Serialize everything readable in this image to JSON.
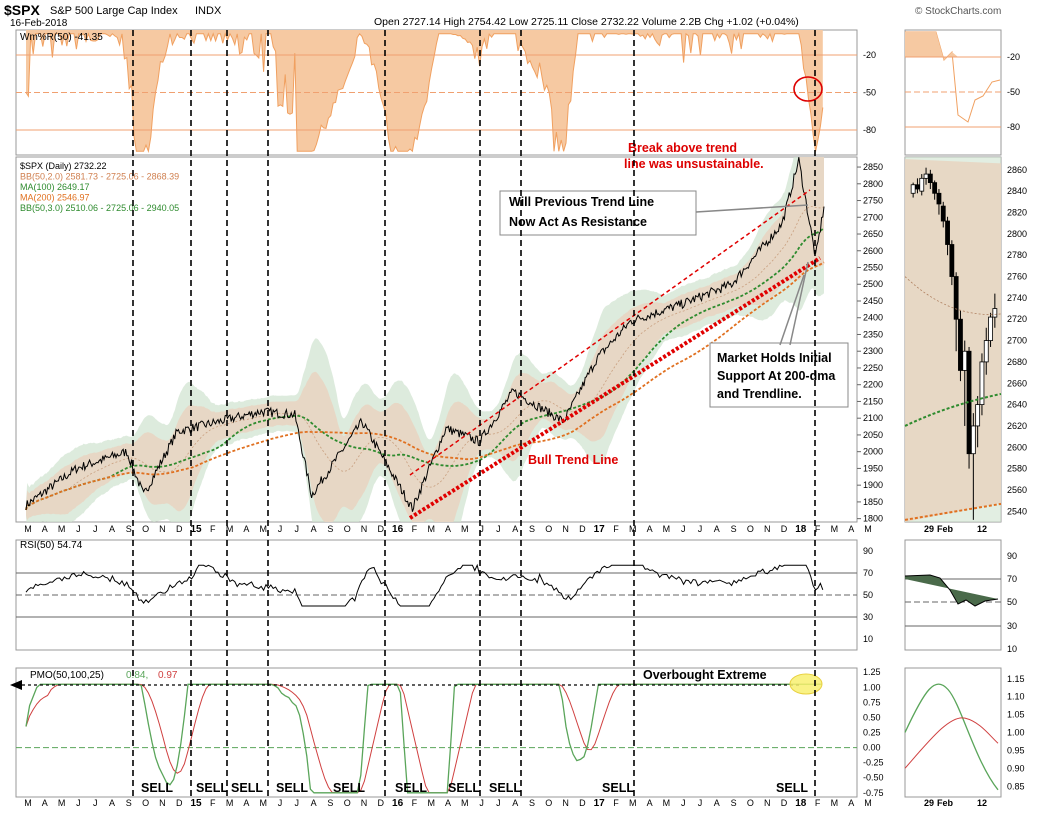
{
  "header": {
    "symbol": "$SPX",
    "name": "S&P 500 Large Cap Index",
    "exchange": "INDX",
    "date": "16-Feb-2018",
    "quote": "Open 2727.14  High 2754.42  Low 2725.11  Close 2732.22  Volume 2.2B  Chg +1.02 (+0.04%)",
    "watermark": "© StockCharts.com"
  },
  "colors": {
    "price": "#000000",
    "wmr": "#f0a060",
    "bb_fill": "#e8d5c2",
    "bb_outer": "#cfe3cf",
    "ma100": "#2e8b2e",
    "ma200": "#e07020",
    "annot_red": "#dd0000",
    "pmo_green": "#5aa55a",
    "pmo_red": "#d04040"
  },
  "wmr_panel": {
    "legend": "Wm%R(50) -41.35",
    "ticks": [
      "-20",
      "-50",
      "-80"
    ],
    "tick_values": [
      -20,
      -50,
      -80
    ],
    "ylim": [
      -100,
      0
    ]
  },
  "price_panel": {
    "legend": [
      {
        "text": "$SPX (Daily) 2732.22",
        "color": "#000000"
      },
      {
        "text": "BB(50,2.0) 2581.73 - 2725.06 - 2868.39",
        "color": "#d08050"
      },
      {
        "text": "MA(100) 2649.17",
        "color": "#2e8b2e"
      },
      {
        "text": "MA(200) 2546.97",
        "color": "#e07020"
      },
      {
        "text": "BB(50,3.0) 2510.06 - 2725.06 - 2940.05",
        "color": "#2e8b2e"
      }
    ],
    "ticks": [
      "2850",
      "2800",
      "2750",
      "2700",
      "2650",
      "2600",
      "2550",
      "2500",
      "2450",
      "2400",
      "2350",
      "2300",
      "2250",
      "2200",
      "2150",
      "2100",
      "2050",
      "2000",
      "1950",
      "1900",
      "1850",
      "1800"
    ],
    "tick_values": [
      2850,
      2800,
      2750,
      2700,
      2650,
      2600,
      2550,
      2500,
      2450,
      2400,
      2350,
      2300,
      2250,
      2200,
      2150,
      2100,
      2050,
      2000,
      1950,
      1900,
      1850,
      1800
    ],
    "ylim": [
      1790,
      2880
    ],
    "annotations": {
      "break_line1": "Break above trend",
      "break_line2": "line was unsustainable.",
      "resistance_line1": "Will Previous Trend Line",
      "resistance_line2": "Now Act As Resistance",
      "support_line1": "Market Holds Initial",
      "support_line2": "Support At 200-dma",
      "support_line3": "and Trendline.",
      "bull": "Bull Trend Line"
    }
  },
  "zoom_panel": {
    "ticks": [
      "2860",
      "2840",
      "2820",
      "2800",
      "2780",
      "2760",
      "2740",
      "2720",
      "2700",
      "2680",
      "2660",
      "2640",
      "2620",
      "2600",
      "2580",
      "2560",
      "2540"
    ],
    "tick_values": [
      2860,
      2840,
      2820,
      2800,
      2780,
      2760,
      2740,
      2720,
      2700,
      2680,
      2660,
      2640,
      2620,
      2600,
      2580,
      2560,
      2540
    ],
    "ylim": [
      2530,
      2872
    ],
    "x_labels": [
      "29",
      "Feb",
      "12"
    ],
    "wmr_ticks": [
      "-20",
      "-50",
      "-80"
    ],
    "rsi_ticks": [
      "90",
      "70",
      "50",
      "30",
      "10"
    ],
    "pmo_ticks": [
      "1.15",
      "1.10",
      "1.05",
      "1.00",
      "0.95",
      "0.90",
      "0.85"
    ],
    "pmo_tick_values": [
      1.15,
      1.1,
      1.05,
      1.0,
      0.95,
      0.9,
      0.85
    ],
    "pmo_ylim": [
      0.82,
      1.18
    ]
  },
  "rsi_panel": {
    "legend": "RSI(50) 54.74",
    "ticks": [
      "90",
      "70",
      "50",
      "30",
      "10"
    ],
    "tick_values": [
      90,
      70,
      50,
      30,
      10
    ],
    "ylim": [
      0,
      100
    ]
  },
  "pmo_panel": {
    "legend_name": "PMO(50,100,25)",
    "legend_v1": "0.84,",
    "legend_v2": "0.97",
    "ticks": [
      "1.25",
      "1.00",
      "0.75",
      "0.50",
      "0.25",
      "0.00",
      "-0.25",
      "-0.50",
      "-0.75"
    ],
    "tick_values": [
      1.25,
      1.0,
      0.75,
      0.5,
      0.25,
      0.0,
      -0.25,
      -0.5,
      -0.75
    ],
    "ylim": [
      -0.82,
      1.32
    ],
    "overbought": "Overbought Extreme"
  },
  "x_axis_labels": [
    "M",
    "A",
    "M",
    "J",
    "J",
    "A",
    "S",
    "O",
    "N",
    "D",
    "15",
    "F",
    "M",
    "A",
    "M",
    "J",
    "J",
    "A",
    "S",
    "O",
    "N",
    "D",
    "16",
    "F",
    "M",
    "A",
    "M",
    "J",
    "J",
    "A",
    "S",
    "O",
    "N",
    "D",
    "17",
    "F",
    "M",
    "A",
    "M",
    "J",
    "J",
    "A",
    "S",
    "O",
    "N",
    "D",
    "18",
    "F",
    "M",
    "A",
    "M"
  ],
  "sell_labels": [
    "SELL",
    "SELL",
    "SELL",
    "SELL",
    "SELL",
    "SELL",
    "SELL",
    "SELL",
    "SELL",
    "SELL",
    "SELL"
  ],
  "chart_data": {
    "type": "line",
    "title": "$SPX S&P 500 Large Cap Index",
    "x_range": [
      "2014-03",
      "2018-02-16"
    ],
    "anchors": [
      {
        "date": "2014-03",
        "spx": 1840
      },
      {
        "date": "2014-06",
        "spx": 1950
      },
      {
        "date": "2014-09",
        "spx": 2000
      },
      {
        "date": "2014-10",
        "spx": 1870
      },
      {
        "date": "2014-12",
        "spx": 2060
      },
      {
        "date": "2015-05",
        "spx": 2120
      },
      {
        "date": "2015-07",
        "spx": 2110
      },
      {
        "date": "2015-08",
        "spx": 1870
      },
      {
        "date": "2015-11",
        "spx": 2090
      },
      {
        "date": "2016-02",
        "spx": 1830
      },
      {
        "date": "2016-04",
        "spx": 2070
      },
      {
        "date": "2016-06",
        "spx": 2030
      },
      {
        "date": "2016-08",
        "spx": 2180
      },
      {
        "date": "2016-11",
        "spx": 2090
      },
      {
        "date": "2017-01",
        "spx": 2280
      },
      {
        "date": "2017-03",
        "spx": 2390
      },
      {
        "date": "2017-06",
        "spx": 2440
      },
      {
        "date": "2017-09",
        "spx": 2500
      },
      {
        "date": "2017-12",
        "spx": 2680
      },
      {
        "date": "2018-01",
        "spx": 2870
      },
      {
        "date": "2018-02",
        "spx": 2580
      },
      {
        "date": "2018-02-16",
        "spx": 2732
      }
    ],
    "series": [
      {
        "name": "MA(100)",
        "last": 2649.17
      },
      {
        "name": "MA(200)",
        "last": 2546.97
      },
      {
        "name": "BB(50,2.0)",
        "values": [
          2581.73,
          2725.06,
          2868.39
        ]
      },
      {
        "name": "BB(50,3.0)",
        "values": [
          2510.06,
          2725.06,
          2940.05
        ]
      },
      {
        "name": "Wm%R(50)",
        "last": -41.35
      },
      {
        "name": "RSI(50)",
        "last": 54.74
      },
      {
        "name": "PMO(50,100,25)",
        "values": [
          0.84,
          0.97
        ]
      }
    ]
  }
}
